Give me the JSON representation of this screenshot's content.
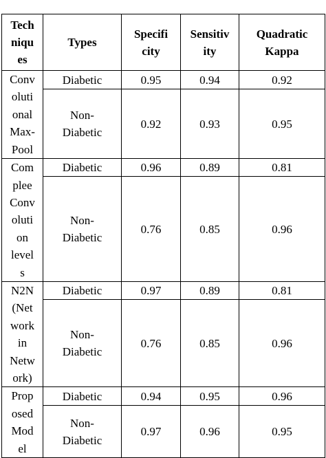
{
  "table": {
    "headers": {
      "techniques": "Tech\nniqu\nes",
      "types": "Types",
      "specificity": "Specifi\ncity",
      "sensitivity": "Sensitiv\nity",
      "kappa": "Quadratic\nKappa"
    },
    "rows": [
      {
        "technique": "Conv\noluti\nonal\nMax-\nPool",
        "diabetic": {
          "type": "Diabetic",
          "specificity": "0.95",
          "sensitivity": "0.94",
          "kappa": "0.92"
        },
        "non_diabetic": {
          "type": "Non-\nDiabetic",
          "specificity": "0.92",
          "sensitivity": "0.93",
          "kappa": "0.95"
        }
      },
      {
        "technique": "Com\nplee\nConv\noluti\non\nlevel\ns",
        "diabetic": {
          "type": "Diabetic",
          "specificity": "0.96",
          "sensitivity": "0.89",
          "kappa": "0.81"
        },
        "non_diabetic": {
          "type": "Non-\nDiabetic",
          "specificity": "0.76",
          "sensitivity": "0.85",
          "kappa": "0.96"
        }
      },
      {
        "technique": "N2N\n(Net\nwork\nin\nNetw\nork)",
        "diabetic": {
          "type": "Diabetic",
          "specificity": "0.97",
          "sensitivity": "0.89",
          "kappa": "0.81"
        },
        "non_diabetic": {
          "type": "Non-\nDiabetic",
          "specificity": "0.76",
          "sensitivity": "0.85",
          "kappa": "0.96"
        }
      },
      {
        "technique": "Prop\nosed\nMod\nel",
        "diabetic": {
          "type": "Diabetic",
          "specificity": "0.94",
          "sensitivity": "0.95",
          "kappa": "0.96"
        },
        "non_diabetic": {
          "type": "Non-\nDiabetic",
          "specificity": "0.97",
          "sensitivity": "0.96",
          "kappa": "0.95"
        }
      }
    ]
  }
}
